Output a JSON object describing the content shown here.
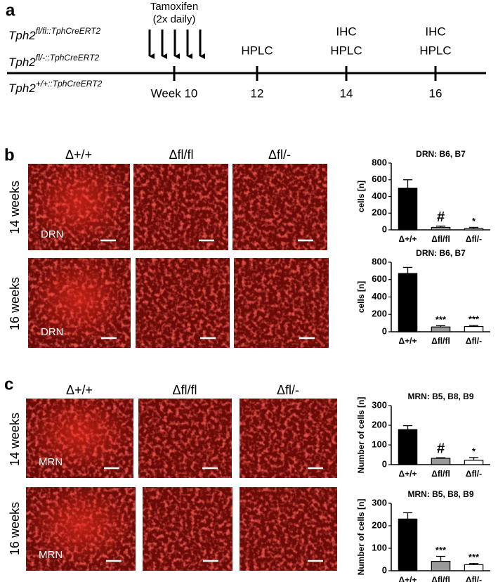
{
  "panels": {
    "a": {
      "label": "a",
      "genotypes": [
        {
          "base": "Tph2",
          "sup": "fl/fl::TphCreERT2"
        },
        {
          "base": "Tph2",
          "sup": "fl/-::TphCreERT2"
        },
        {
          "base": "Tph2",
          "sup": "+/+::TphCreERT2"
        }
      ],
      "timeline": [
        {
          "label": "Week 10",
          "above": [
            "Tamoxifen",
            "(2x daily)"
          ]
        },
        {
          "label": "12",
          "above": [
            "HPLC"
          ]
        },
        {
          "label": "14",
          "above": [
            "IHC",
            "HPLC"
          ]
        },
        {
          "label": "16",
          "above": [
            "IHC",
            "HPLC"
          ]
        }
      ]
    },
    "b": {
      "label": "b",
      "columns": [
        "Δ+/+",
        "Δfl/fl",
        "Δfl/-"
      ],
      "rows": [
        "14 weeks",
        "16 weeks"
      ],
      "region": "DRN"
    },
    "c": {
      "label": "c",
      "columns": [
        "Δ+/+",
        "Δfl/fl",
        "Δfl/-"
      ],
      "rows": [
        "14 weeks",
        "16 weeks"
      ],
      "region": "MRN"
    }
  },
  "chart_data": [
    {
      "type": "bar",
      "title": "DRN: B6, B7",
      "ylabel": "cells [n]",
      "categories": [
        "Δ+/+",
        "Δfl/fl",
        "Δfl/-"
      ],
      "series": [
        {
          "values": [
            500,
            30,
            15
          ],
          "errors": [
            100,
            15,
            15
          ],
          "colors": [
            "#000000",
            "#999999",
            "#ffffff"
          ],
          "annotations": [
            null,
            "#",
            "*"
          ]
        }
      ],
      "ylim": [
        0,
        800
      ],
      "yticks": [
        0,
        200,
        400,
        600,
        800
      ]
    },
    {
      "type": "bar",
      "title": "DRN: B6, B7",
      "ylabel": "cells [n]",
      "categories": [
        "Δ+/+",
        "Δfl/fl",
        "Δfl/-"
      ],
      "series": [
        {
          "values": [
            670,
            55,
            60
          ],
          "errors": [
            70,
            15,
            12
          ],
          "colors": [
            "#000000",
            "#999999",
            "#ffffff"
          ],
          "annotations": [
            null,
            "***",
            "***"
          ]
        }
      ],
      "ylim": [
        0,
        800
      ],
      "yticks": [
        0,
        200,
        400,
        600,
        800
      ]
    },
    {
      "type": "bar",
      "title": "MRN: B5, B8, B9",
      "ylabel": "Number of cells [n]",
      "categories": [
        "Δ+/+",
        "Δfl/fl",
        "Δfl/-"
      ],
      "series": [
        {
          "values": [
            178,
            32,
            22
          ],
          "errors": [
            20,
            3,
            14
          ],
          "colors": [
            "#000000",
            "#999999",
            "#ffffff"
          ],
          "annotations": [
            null,
            "#",
            "*"
          ]
        }
      ],
      "ylim": [
        0,
        300
      ],
      "yticks": [
        0,
        100,
        200,
        300
      ]
    },
    {
      "type": "bar",
      "title": "MRN: B5, B8, B9",
      "ylabel": "Number of cells [n]",
      "categories": [
        "Δ+/+",
        "Δfl/fl",
        "Δfl/-"
      ],
      "series": [
        {
          "values": [
            230,
            42,
            27
          ],
          "errors": [
            28,
            22,
            5
          ],
          "colors": [
            "#000000",
            "#999999",
            "#ffffff"
          ],
          "annotations": [
            null,
            "***",
            "***"
          ]
        }
      ],
      "ylim": [
        0,
        300
      ],
      "yticks": [
        0,
        100,
        200,
        300
      ]
    }
  ]
}
